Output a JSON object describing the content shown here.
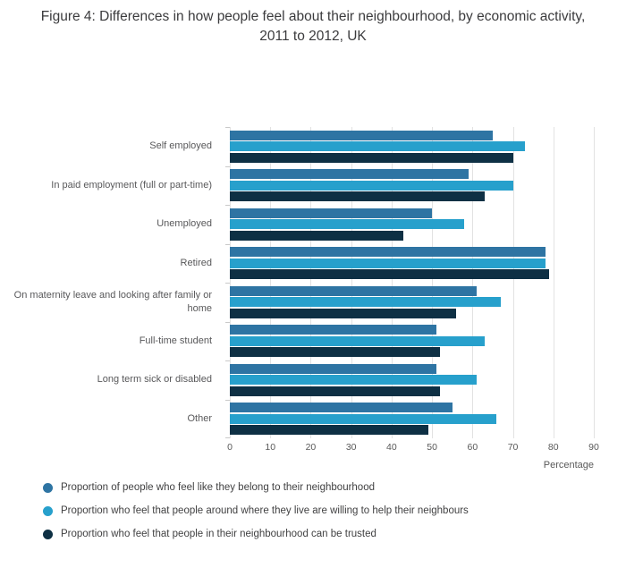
{
  "chart_data": {
    "type": "bar",
    "orientation": "horizontal",
    "title": "Figure 4: Differences in how people feel about their neighbourhood, by economic activity, 2011 to 2012, UK",
    "xlabel": "Percentage",
    "xlim": [
      0,
      90
    ],
    "xticks": [
      0,
      10,
      20,
      30,
      40,
      50,
      60,
      70,
      80,
      90
    ],
    "grid": true,
    "legend_position": "bottom-left",
    "categories": [
      "Self employed",
      "In paid employment (full or part-time)",
      "Unemployed",
      "Retired",
      "On maternity leave and looking after family or home",
      "Full-time student",
      "Long term sick or disabled",
      "Other"
    ],
    "series": [
      {
        "name": "Proportion of people who feel like they belong to their neighbourhood",
        "color": "#2e74a3",
        "values": [
          65,
          59,
          50,
          78,
          61,
          51,
          51,
          55
        ]
      },
      {
        "name": "Proportion who feel that people around where they live are willing to help their neighbours",
        "color": "#27a0cc",
        "values": [
          73,
          70,
          58,
          78,
          67,
          63,
          61,
          66
        ]
      },
      {
        "name": "Proportion who feel that people in their neighbourhood can be trusted",
        "color": "#0e3044",
        "values": [
          70,
          63,
          43,
          79,
          56,
          52,
          52,
          49
        ]
      }
    ]
  }
}
